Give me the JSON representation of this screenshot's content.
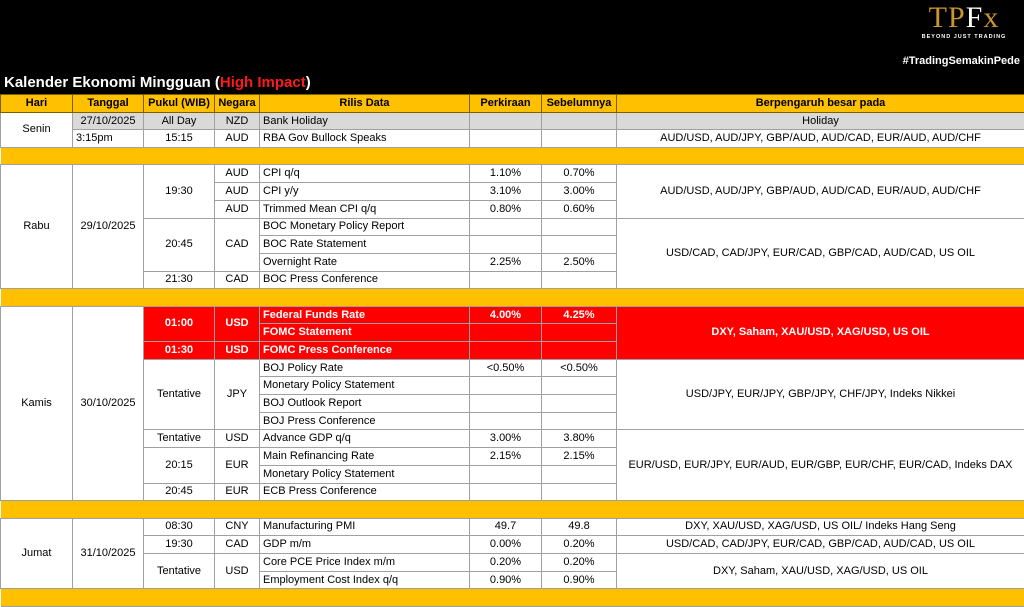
{
  "header": {
    "title_prefix": "Kalender Ekonomi Mingguan (",
    "title_highlight": "High Impact",
    "title_suffix": ")",
    "hashtag": "#TradingSemakinPede",
    "logo_text": "TPFx",
    "logo_tagline": "BEYOND JUST TRADING"
  },
  "colors": {
    "header_bg": "#ffc000",
    "highlight": "#ff0000",
    "holiday": "#d9d9d9"
  },
  "columns": [
    "Hari",
    "Tanggal",
    "Pukul (WIB)",
    "Negara",
    "Rilis Data",
    "Perkiraan",
    "Sebelumnya",
    "Berpengaruh besar pada"
  ],
  "days": [
    {
      "hari": "Senin",
      "tanggal_rows": [
        "27/10/2025",
        "3:15pm"
      ],
      "groups": [
        {
          "time": "All Day",
          "country": "NZD",
          "style": "gray",
          "events": [
            {
              "name": "Bank Holiday",
              "forecast": "",
              "previous": ""
            }
          ]
        },
        {
          "time": "15:15",
          "country": "AUD",
          "events": [
            {
              "name": "RBA Gov Bullock Speaks",
              "forecast": "",
              "previous": ""
            }
          ]
        }
      ],
      "impacts": [
        {
          "text": "Holiday",
          "span": 1,
          "style": "gray"
        },
        {
          "text": "AUD/USD, AUD/JPY, GBP/AUD, AUD/CAD, EUR/AUD, AUD/CHF",
          "span": 1
        }
      ]
    },
    {
      "hari": "Rabu",
      "tanggal": "29/10/2025",
      "groups": [
        {
          "time": "19:30",
          "countries": [
            "AUD",
            "AUD",
            "AUD"
          ],
          "events": [
            {
              "name": "CPI q/q",
              "forecast": "1.10%",
              "previous": "0.70%"
            },
            {
              "name": "CPI y/y",
              "forecast": "3.10%",
              "previous": "3.00%"
            },
            {
              "name": "Trimmed Mean CPI q/q",
              "forecast": "0.80%",
              "previous": "0.60%"
            }
          ]
        },
        {
          "time": "20:45",
          "country": "CAD",
          "events": [
            {
              "name": "BOC Monetary Policy Report",
              "forecast": "",
              "previous": ""
            },
            {
              "name": "BOC Rate Statement",
              "forecast": "",
              "previous": ""
            },
            {
              "name": "Overnight Rate",
              "forecast": "2.25%",
              "previous": "2.50%"
            }
          ]
        },
        {
          "time": "21:30",
          "country": "CAD",
          "events": [
            {
              "name": "BOC Press Conference",
              "forecast": "",
              "previous": ""
            }
          ]
        }
      ],
      "impacts": [
        {
          "text": "AUD/USD, AUD/JPY, GBP/AUD, AUD/CAD, EUR/AUD, AUD/CHF",
          "span": 3
        },
        {
          "text": "USD/CAD, CAD/JPY, EUR/CAD, GBP/CAD, AUD/CAD, US OIL",
          "span": 4
        }
      ]
    },
    {
      "hari": "Kamis",
      "tanggal": "30/10/2025",
      "groups": [
        {
          "time": "01:00",
          "country": "USD",
          "style": "red",
          "events": [
            {
              "name": "Federal Funds Rate",
              "forecast": "4.00%",
              "previous": "4.25%"
            },
            {
              "name": "FOMC Statement",
              "forecast": "",
              "previous": ""
            }
          ]
        },
        {
          "time": "01:30",
          "country": "USD",
          "style": "red",
          "events": [
            {
              "name": "FOMC Press Conference",
              "forecast": "",
              "previous": ""
            }
          ]
        },
        {
          "time": "Tentative",
          "country": "JPY",
          "events": [
            {
              "name": "BOJ Policy Rate",
              "forecast": "<0.50%",
              "previous": "<0.50%"
            },
            {
              "name": "Monetary Policy Statement",
              "forecast": "",
              "previous": ""
            },
            {
              "name": "BOJ Outlook Report",
              "forecast": "",
              "previous": ""
            },
            {
              "name": "BOJ Press Conference",
              "forecast": "",
              "previous": ""
            }
          ]
        },
        {
          "time": "Tentative",
          "country": "USD",
          "events": [
            {
              "name": "Advance GDP q/q",
              "forecast": "3.00%",
              "previous": "3.80%"
            }
          ]
        },
        {
          "time": "20:15",
          "country": "EUR",
          "events": [
            {
              "name": "Main Refinancing Rate",
              "forecast": "2.15%",
              "previous": "2.15%"
            },
            {
              "name": "Monetary Policy Statement",
              "forecast": "",
              "previous": ""
            }
          ]
        },
        {
          "time": "20:45",
          "country": "EUR",
          "events": [
            {
              "name": "ECB Press Conference",
              "forecast": "",
              "previous": ""
            }
          ]
        }
      ],
      "impacts": [
        {
          "text": "DXY, Saham, XAU/USD, XAG/USD, US OIL",
          "span": 3,
          "style": "red"
        },
        {
          "text": "USD/JPY, EUR/JPY, GBP/JPY, CHF/JPY, Indeks Nikkei",
          "span": 4
        },
        {
          "text": "EUR/USD, EUR/JPY, EUR/AUD, EUR/GBP, EUR/CHF, EUR/CAD, Indeks DAX",
          "span": 4
        }
      ]
    },
    {
      "hari": "Jumat",
      "tanggal": "31/10/2025",
      "groups": [
        {
          "time": "08:30",
          "country": "CNY",
          "events": [
            {
              "name": "Manufacturing PMI",
              "forecast": "49.7",
              "previous": "49.8"
            }
          ]
        },
        {
          "time": "19:30",
          "country": "CAD",
          "events": [
            {
              "name": "GDP m/m",
              "forecast": "0.00%",
              "previous": "0.20%"
            }
          ]
        },
        {
          "time": "Tentative",
          "country": "USD",
          "events": [
            {
              "name": "Core PCE Price Index m/m",
              "forecast": "0.20%",
              "previous": "0.20%"
            },
            {
              "name": "Employment Cost Index q/q",
              "forecast": "0.90%",
              "previous": "0.90%"
            }
          ]
        }
      ],
      "impacts": [
        {
          "text": "DXY, XAU/USD, XAG/USD, US OIL/ Indeks Hang Seng",
          "span": 1
        },
        {
          "text": "USD/CAD, CAD/JPY, EUR/CAD, GBP/CAD, AUD/CAD, US OIL",
          "span": 1
        },
        {
          "text": "DXY, Saham, XAU/USD, XAG/USD, US OIL",
          "span": 2
        }
      ]
    }
  ]
}
